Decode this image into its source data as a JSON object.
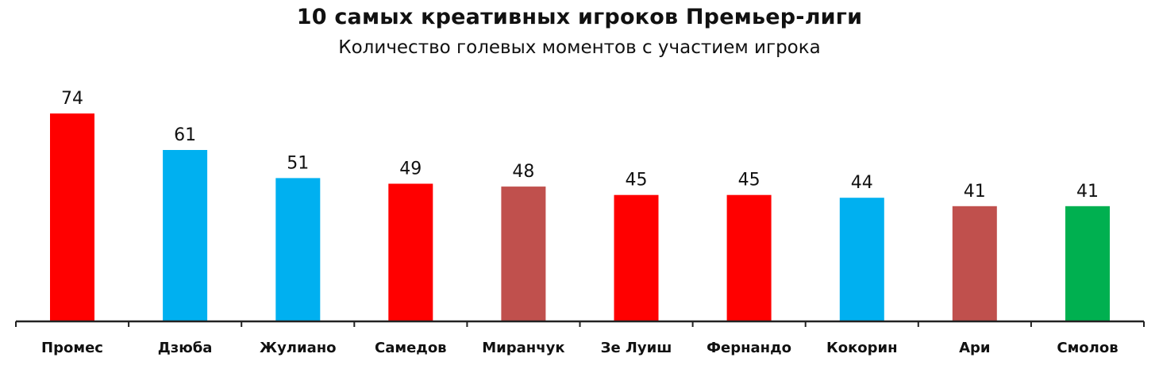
{
  "chart_data": {
    "type": "bar",
    "title": "10 самых креативных игроков Премьер-лиги",
    "subtitle": "Количество голевых моментов с участием игрока",
    "xlabel": "",
    "ylabel": "",
    "ylim": [
      0,
      74
    ],
    "grid": false,
    "legend": "none",
    "categories": [
      "Промес",
      "Дзюба",
      "Жулиано",
      "Самедов",
      "Миранчук",
      "Зе Луиш",
      "Фернандо",
      "Кокорин",
      "Ари",
      "Смолов"
    ],
    "values": [
      74,
      61,
      51,
      49,
      48,
      45,
      45,
      44,
      41,
      41
    ],
    "bar_colors": [
      "#ff0000",
      "#00b0f0",
      "#00b0f0",
      "#ff0000",
      "#c0504d",
      "#ff0000",
      "#ff0000",
      "#00b0f0",
      "#c0504d",
      "#00b050"
    ],
    "data_labels": [
      "74",
      "61",
      "51",
      "49",
      "48",
      "45",
      "45",
      "44",
      "41",
      "41"
    ]
  }
}
